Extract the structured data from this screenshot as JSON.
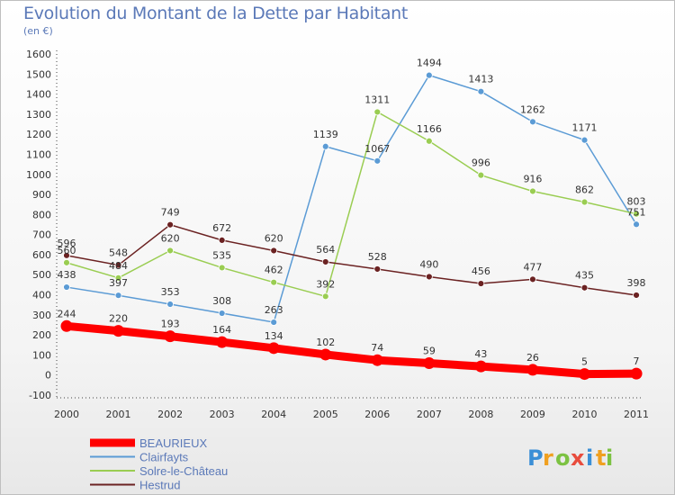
{
  "header": {
    "title": "Evolution du Montant de la Dette par Habitant",
    "subtitle": "(en €)"
  },
  "logo": {
    "letters": [
      "P",
      "r",
      "o",
      "x",
      "i",
      "t",
      "i"
    ],
    "text": "Proxiti"
  },
  "colors": {
    "title": "#5b79b8",
    "BEAURIEUX": "#ff0000",
    "Clairfayts": "#5b9bd5",
    "Solre-le-Château": "#9acd52",
    "Hestrud": "#6b2222"
  },
  "chart_data": {
    "type": "line",
    "title": "Evolution du Montant de la Dette par Habitant",
    "subtitle": "(en €)",
    "xlabel": "",
    "ylabel": "",
    "categories": [
      "2000",
      "2001",
      "2002",
      "2003",
      "2004",
      "2005",
      "2006",
      "2007",
      "2008",
      "2009",
      "2010",
      "2011"
    ],
    "ylim": [
      -100,
      1600
    ],
    "yticks": [
      -100,
      0,
      100,
      200,
      300,
      400,
      500,
      600,
      700,
      800,
      900,
      1000,
      1100,
      1200,
      1300,
      1400,
      1500,
      1600
    ],
    "grid": false,
    "legend_position": "bottom-left",
    "series": [
      {
        "name": "BEAURIEUX",
        "values": [
          244,
          220,
          193,
          164,
          134,
          102,
          74,
          59,
          43,
          26,
          5,
          7
        ]
      },
      {
        "name": "Clairfayts",
        "values": [
          438,
          397,
          353,
          308,
          263,
          1139,
          1067,
          1494,
          1413,
          1262,
          1171,
          751
        ]
      },
      {
        "name": "Solre-le-Château",
        "values": [
          560,
          484,
          620,
          535,
          462,
          392,
          1311,
          1166,
          996,
          916,
          862,
          803
        ]
      },
      {
        "name": "Hestrud",
        "values": [
          596,
          548,
          749,
          672,
          620,
          564,
          528,
          490,
          456,
          477,
          435,
          398
        ]
      }
    ]
  }
}
